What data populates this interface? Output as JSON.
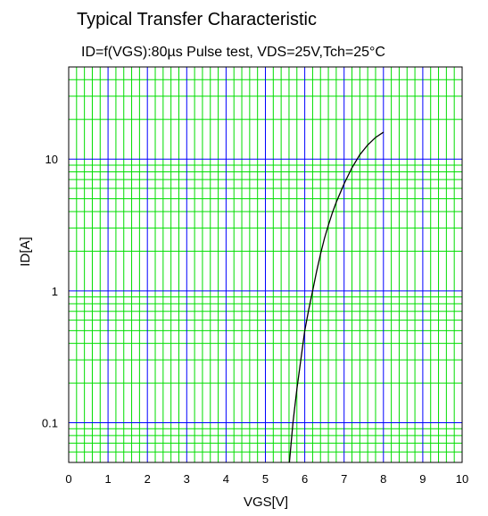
{
  "chart_data": {
    "type": "line",
    "title": "Typical Transfer Characteristic",
    "subtitle": "ID=f(VGS):80µs Pulse test, VDS=25V,Tch=25°C",
    "xlabel": "VGS[V]",
    "ylabel": "ID[A]",
    "xlim": [
      0,
      10
    ],
    "ylim": [
      0.05,
      50
    ],
    "yscale": "log",
    "grid": true,
    "colors": {
      "major_grid": "#0000ff",
      "minor_grid": "#00dd00",
      "curve": "#000000"
    },
    "x_ticks": [
      "0",
      "1",
      "2",
      "3",
      "4",
      "5",
      "6",
      "7",
      "8",
      "9",
      "10"
    ],
    "y_ticks": [
      {
        "value": 0.1,
        "label": "0.1"
      },
      {
        "value": 1,
        "label": "1"
      },
      {
        "value": 10,
        "label": "10"
      }
    ],
    "series": [
      {
        "x": [
          5.61,
          5.7,
          5.8,
          5.9,
          6.0,
          6.1,
          6.2,
          6.3,
          6.4,
          6.5,
          6.6,
          6.7,
          6.8,
          7.0,
          7.2,
          7.4,
          7.6,
          7.8,
          8.0
        ],
        "y": [
          0.05,
          0.1,
          0.18,
          0.3,
          0.5,
          0.72,
          1.0,
          1.4,
          1.9,
          2.5,
          3.15,
          3.9,
          4.7,
          6.5,
          8.6,
          10.8,
          12.8,
          14.6,
          16.0
        ]
      }
    ]
  }
}
